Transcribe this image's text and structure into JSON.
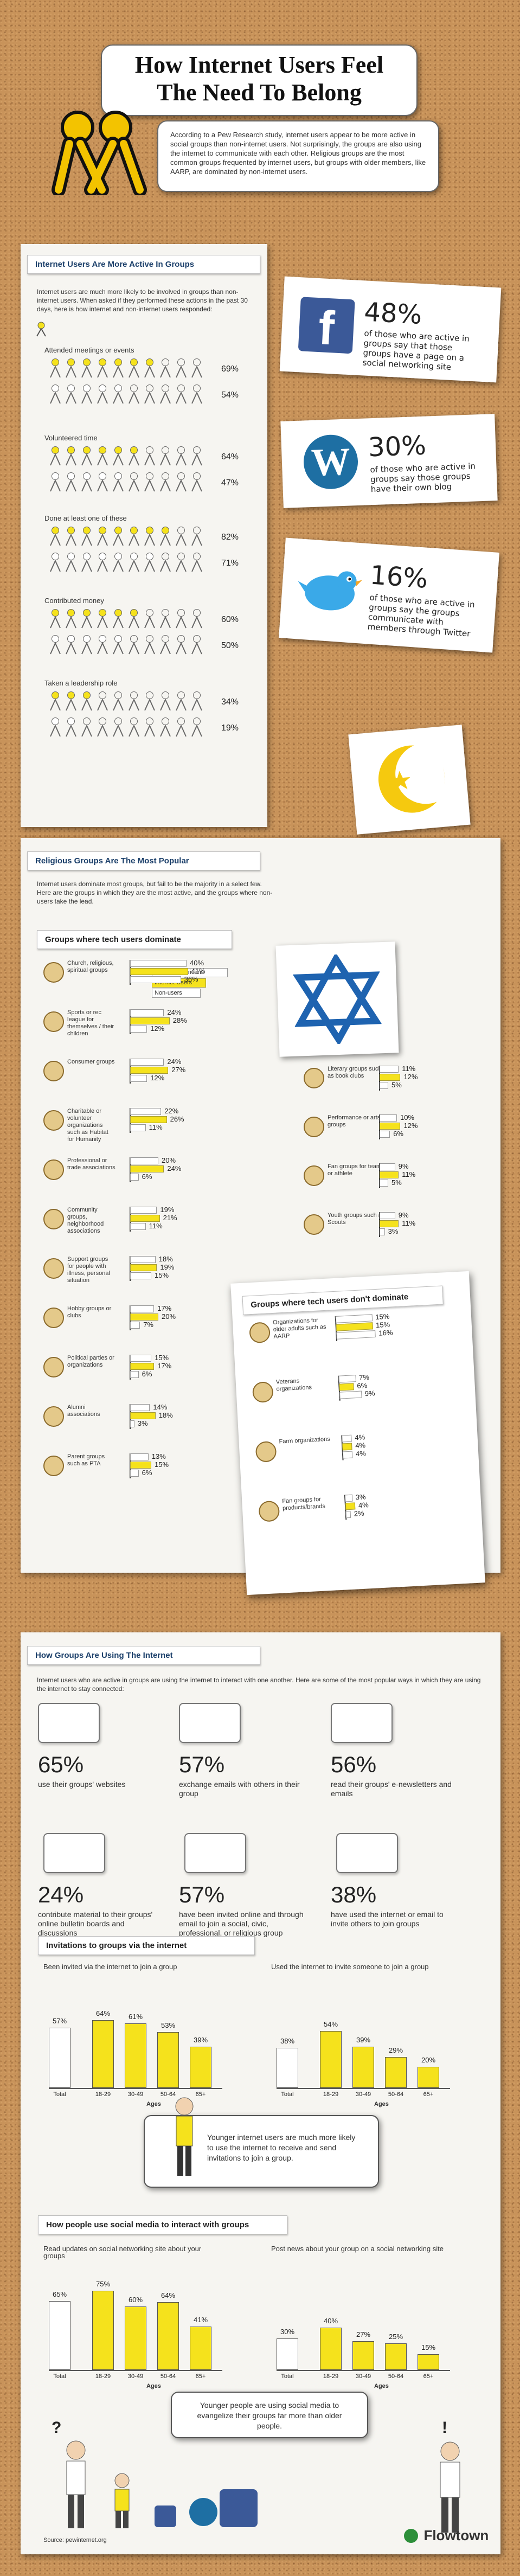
{
  "header": {
    "title_line1": "How Internet Users Feel",
    "title_line2": "The Need To Belong",
    "intro": "According to a Pew Research study, internet users appear to be more active in social groups than non-internet users. Not surprisingly, the groups are also using the internet to communicate with each other. Religious groups are the most common groups frequented by internet users, but groups with older members, like AARP, are dominated by non-internet users."
  },
  "active": {
    "heading": "Internet Users Are More Active In Groups",
    "intro": "Internet users are much more likely to be involved in groups than non-internet users. When asked if they performed these actions in the past 30 days, here is how internet and non-internet users responded:",
    "rows": [
      {
        "label": "Attended meetings or events",
        "internet": "69%",
        "non": "54%",
        "internet_val": 69,
        "non_val": 54
      },
      {
        "label": "Volunteered time",
        "internet": "64%",
        "non": "47%",
        "internet_val": 64,
        "non_val": 47
      },
      {
        "label": "Done at least one of these",
        "internet": "82%",
        "non": "71%",
        "internet_val": 82,
        "non_val": 71
      },
      {
        "label": "Contributed money",
        "internet": "60%",
        "non": "50%",
        "internet_val": 60,
        "non_val": 50
      },
      {
        "label": "Taken a leadership role",
        "internet": "34%",
        "non": "19%",
        "internet_val": 34,
        "non_val": 19
      }
    ]
  },
  "cards": [
    {
      "pct": "48%",
      "text": "of those who are active in groups say that those groups have a page on a social networking site",
      "icon": "facebook-icon"
    },
    {
      "pct": "30%",
      "text": "of those who are active in groups say those groups have their own blog",
      "icon": "wordpress-icon"
    },
    {
      "pct": "16%",
      "text": "of those who are active in groups say the groups communicate with members through Twitter",
      "icon": "twitter-bird-icon"
    }
  ],
  "religious": {
    "heading": "Religious Groups Are The Most Popular",
    "intro": "Internet users dominate most groups, but fail to be the majority in a select few. Here are the groups in which they are the most active, and the groups where non-users take the lead.",
    "tech_dominate_heading": "Groups where tech users dominate",
    "legend": [
      "% of All Americans",
      "Internet Users",
      "Non-users"
    ],
    "left_groups": [
      {
        "label": "Church, religious, spiritual groups",
        "all": "40%",
        "internet": "41%",
        "non": "36%",
        "v": [
          40,
          41,
          36
        ]
      },
      {
        "label": "Sports or rec league for themselves / their children",
        "all": "24%",
        "internet": "28%",
        "non": "12%",
        "v": [
          24,
          28,
          12
        ]
      },
      {
        "label": "Consumer groups",
        "all": "24%",
        "internet": "27%",
        "non": "12%",
        "v": [
          24,
          27,
          12
        ]
      },
      {
        "label": "Charitable or volunteer organizations such as Habitat for Humanity",
        "all": "22%",
        "internet": "26%",
        "non": "11%",
        "v": [
          22,
          26,
          11
        ]
      },
      {
        "label": "Professional or trade associations",
        "all": "20%",
        "internet": "24%",
        "non": "6%",
        "v": [
          20,
          24,
          6
        ]
      },
      {
        "label": "Community groups, neighborhood associations",
        "all": "19%",
        "internet": "21%",
        "non": "11%",
        "v": [
          19,
          21,
          11
        ]
      },
      {
        "label": "Support groups for people with illness, personal situation",
        "all": "18%",
        "internet": "19%",
        "non": "15%",
        "v": [
          18,
          19,
          15
        ]
      },
      {
        "label": "Hobby groups or clubs",
        "all": "17%",
        "internet": "20%",
        "non": "7%",
        "v": [
          17,
          20,
          7
        ]
      },
      {
        "label": "Political parties or organizations",
        "all": "15%",
        "internet": "17%",
        "non": "6%",
        "v": [
          15,
          17,
          6
        ]
      },
      {
        "label": "Alumni associations",
        "all": "14%",
        "internet": "18%",
        "non": "3%",
        "v": [
          14,
          18,
          3
        ]
      },
      {
        "label": "Parent groups such as PTA",
        "all": "13%",
        "internet": "15%",
        "non": "6%",
        "v": [
          13,
          15,
          6
        ]
      }
    ],
    "right_groups": [
      {
        "label": "Literary groups such as book clubs",
        "all": "11%",
        "internet": "12%",
        "non": "5%",
        "v": [
          11,
          12,
          5
        ]
      },
      {
        "label": "Performance or arts groups",
        "all": "10%",
        "internet": "12%",
        "non": "6%",
        "v": [
          10,
          12,
          6
        ]
      },
      {
        "label": "Fan groups for team or athlete",
        "all": "9%",
        "internet": "11%",
        "non": "5%",
        "v": [
          9,
          11,
          5
        ]
      },
      {
        "label": "Youth groups such as Scouts",
        "all": "9%",
        "internet": "11%",
        "non": "3%",
        "v": [
          9,
          11,
          3
        ]
      }
    ],
    "non_dominate_heading": "Groups where tech users don't dominate",
    "non_groups": [
      {
        "label": "Organizations for older adults such as AARP",
        "all": "15%",
        "internet": "15%",
        "non": "16%",
        "v": [
          15,
          15,
          16
        ]
      },
      {
        "label": "Veterans organizations",
        "all": "7%",
        "internet": "6%",
        "non": "9%",
        "v": [
          7,
          6,
          9
        ]
      },
      {
        "label": "Farm organizations",
        "all": "4%",
        "internet": "4%",
        "non": "4%",
        "v": [
          4,
          4,
          4
        ]
      },
      {
        "label": "Fan groups for products/brands",
        "all": "3%",
        "internet": "4%",
        "non": "2%",
        "v": [
          3,
          4,
          2
        ]
      }
    ]
  },
  "using": {
    "heading": "How Groups Are Using The Internet",
    "intro": "Internet users who are active in groups are using the internet to interact with one another. Here are some of the most popular ways in which they are using the internet to stay connected:",
    "stats": [
      {
        "pct": "65%",
        "text": "use their groups' websites",
        "icon": "browser-http-icon"
      },
      {
        "pct": "57%",
        "text": "exchange emails with others in their group",
        "icon": "gmail-icon"
      },
      {
        "pct": "56%",
        "text": "read their groups' e-newsletters and emails",
        "icon": "newsletter-icon"
      },
      {
        "pct": "24%",
        "text": "contribute material to their groups' online bulletin boards and discussions",
        "icon": "speech-bubbles-icon"
      },
      {
        "pct": "57%",
        "text": "have been invited online and through email to join a social, civic, professional, or religious group",
        "icon": "envelope-icon"
      },
      {
        "pct": "38%",
        "text": "have used the internet or email to invite others to join groups",
        "icon": "mailbox-icon"
      }
    ],
    "invitations_heading": "Invitations to groups via the internet",
    "social_heading": "How people use social media to interact with groups",
    "invite_note": "Younger internet users are much more likely to use the internet to receive and send invitations to join a group.",
    "social_note": "Younger people are using social media to evangelize their groups far more than older people.",
    "source": "Source: pewinternet.org",
    "brand": "Flowtown"
  },
  "chart_data": [
    {
      "type": "bar",
      "title": "Been invited via the internet to join a group",
      "categories": [
        "Total",
        "18-29",
        "30-49",
        "50-64",
        "65+"
      ],
      "values": [
        57,
        64,
        61,
        53,
        39
      ],
      "labels": [
        "57%",
        "64%",
        "61%",
        "53%",
        "39%"
      ],
      "xlabel": "Ages"
    },
    {
      "type": "bar",
      "title": "Used the internet to invite someone to join a group",
      "categories": [
        "Total",
        "18-29",
        "30-49",
        "50-64",
        "65+"
      ],
      "values": [
        38,
        54,
        39,
        29,
        20
      ],
      "labels": [
        "38%",
        "54%",
        "39%",
        "29%",
        "20%"
      ],
      "xlabel": "Ages"
    },
    {
      "type": "bar",
      "title": "Read updates on social networking site about your groups",
      "categories": [
        "Total",
        "18-29",
        "30-49",
        "50-64",
        "65+"
      ],
      "values": [
        65,
        75,
        60,
        64,
        41
      ],
      "labels": [
        "65%",
        "75%",
        "60%",
        "64%",
        "41%"
      ],
      "xlabel": "Ages"
    },
    {
      "type": "bar",
      "title": "Post news about your group on a social networking site",
      "categories": [
        "Total",
        "18-29",
        "30-49",
        "50-64",
        "65+"
      ],
      "values": [
        30,
        40,
        27,
        25,
        15
      ],
      "labels": [
        "30%",
        "40%",
        "27%",
        "25%",
        "15%"
      ],
      "xlabel": "Ages"
    }
  ],
  "colors": {
    "yellow": "#f5e21c",
    "navy": "#1b3f6a",
    "cork": "#c8935a"
  }
}
